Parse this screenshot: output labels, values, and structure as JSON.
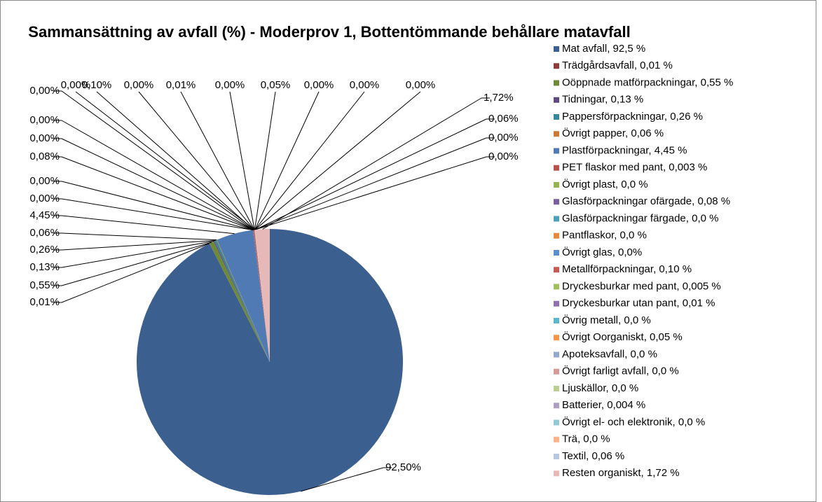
{
  "chart_data": {
    "type": "pie",
    "title": "Sammansättning av avfall (%) - Moderprov 1, Bottentömmande behållare matavfall",
    "categories": [
      "Mat avfall, 92,5 %",
      "Trädgårdsavfall, 0,01 %",
      "Oöppnade matförpackningar, 0,55 %",
      "Tidningar, 0,13 %",
      "Pappersförpackningar, 0,26 %",
      "Övrigt papper, 0,06 %",
      "Plastförpackningar, 4,45 %",
      "PET flaskor med pant, 0,003 %",
      "Övrigt plast, 0,0 %",
      "Glasförpackningar ofärgade, 0,08 %",
      "Glasförpackningar färgade, 0,0 %",
      "Pantflaskor, 0,0 %",
      "Övrigt glas, 0,0%",
      "Metallförpackningar, 0,10 %",
      "Dryckesburkar med pant, 0,005 %",
      "Dryckesburkar utan pant, 0,01 %",
      "Övrig metall, 0,0 %",
      "Övrigt Oorganiskt, 0,05 %",
      "Apoteksavfall, 0,0 %",
      "Övrigt farligt avfall, 0,0 %",
      "Ljuskällor, 0,0 %",
      "Batterier, 0,004 %",
      "Övrigt el- och elektronik, 0,0 %",
      "Trä, 0,0 %",
      "Textil, 0,06 %",
      "Resten organiskt, 1,72 %"
    ],
    "values": [
      92.5,
      0.01,
      0.55,
      0.13,
      0.26,
      0.06,
      4.45,
      0.003,
      0,
      0.08,
      0,
      0,
      0,
      0.1,
      0.005,
      0.01,
      0,
      0.05,
      0,
      0,
      0,
      0.004,
      0,
      0,
      0.06,
      1.72
    ],
    "value_labels": [
      "92,50%",
      "0,01%",
      "0,55%",
      "0,13%",
      "0,26%",
      "0,06%",
      "4,45%",
      "0,00%",
      "0,00%",
      "0,08%",
      "0,00%",
      "0,00%",
      "0,00%",
      "0,10%",
      "0,00%",
      "0,01%",
      "0,00%",
      "0,05%",
      "0,00%",
      "0,00%",
      "0,00%",
      "0,00%",
      "0,00%",
      "0,00%",
      "0,06%",
      "1,72%"
    ],
    "colors": [
      "#3b5f8f",
      "#8e3a38",
      "#6f8a36",
      "#5e4a7c",
      "#37879b",
      "#c97a33",
      "#4f7ab3",
      "#b8504d",
      "#94b450",
      "#7b5f9c",
      "#4aa3b8",
      "#e6883a",
      "#5b8fd0",
      "#c65a57",
      "#a3c060",
      "#8e72ad",
      "#5bb8cc",
      "#f79646",
      "#94a8cc",
      "#d59a98",
      "#b9cf8f",
      "#ab9fc1",
      "#93c8d6",
      "#f9b48a",
      "#b9c8e1",
      "#e6b9b8"
    ],
    "legend": "right"
  }
}
